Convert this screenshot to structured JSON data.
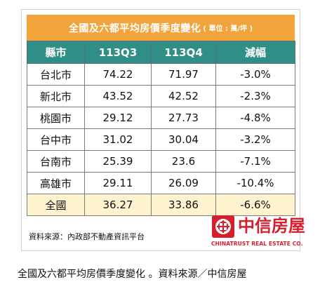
{
  "title": {
    "main": "全國及六都平均房價季度變化",
    "unit": "( 單位 : 萬/坪 )"
  },
  "table": {
    "headers": [
      "縣市",
      "113Q3",
      "113Q4",
      "減幅"
    ],
    "rows": [
      [
        "台北市",
        "74.22",
        "71.97",
        "-3.0%"
      ],
      [
        "新北市",
        "43.52",
        "42.52",
        "-2.3%"
      ],
      [
        "桃園市",
        "29.12",
        "27.73",
        "-4.8%"
      ],
      [
        "台中市",
        "31.02",
        "30.04",
        "-3.2%"
      ],
      [
        "台南市",
        "25.39",
        "23.6",
        "-7.1%"
      ],
      [
        "高雄市",
        "29.11",
        "26.09",
        "-10.4%"
      ],
      [
        "全國",
        "36.27",
        "33.86",
        "-6.6%"
      ]
    ]
  },
  "source": "資料來源：內政部不動產資訊平台",
  "logo": {
    "name": "中信房屋",
    "subtitle": "CHINATRUST REAL ESTATE CO."
  },
  "caption": "全國及六都平均房價季度變化 。資料來源／中信房屋",
  "colors": {
    "title_bg": "#f2a33a",
    "header_bg": "#2f8f86",
    "total_row_bg": "#fff3cf",
    "logo_red": "#d51f2f"
  }
}
